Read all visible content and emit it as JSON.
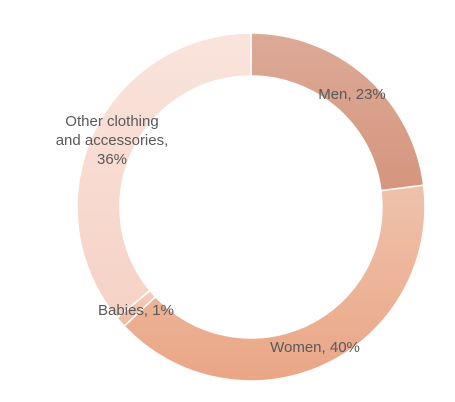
{
  "chart_data": {
    "type": "pie",
    "variant": "donut",
    "title": "",
    "start_angle_deg": 0,
    "direction": "clockwise",
    "legend": "none",
    "slices": [
      {
        "name": "Men",
        "value": 23,
        "label_lines": [
          "Men, 23%"
        ],
        "color_light": "#dcaa97",
        "color_dark": "#d6957e"
      },
      {
        "name": "Women",
        "value": 40,
        "label_lines": [
          "Women, 40%"
        ],
        "color_light": "#efc2ab",
        "color_dark": "#eaa686"
      },
      {
        "name": "Babies",
        "value": 1,
        "label_lines": [
          "Babies, 1%"
        ],
        "color_light": "#f4cdbd",
        "color_dark": "#f0b9a2"
      },
      {
        "name": "Other clothing and accessories",
        "value": 36,
        "label_lines": [
          "Other clothing",
          "and accessories,",
          "36%"
        ],
        "color_light": "#f9e4dc",
        "color_dark": "#f6d2c5"
      }
    ]
  }
}
